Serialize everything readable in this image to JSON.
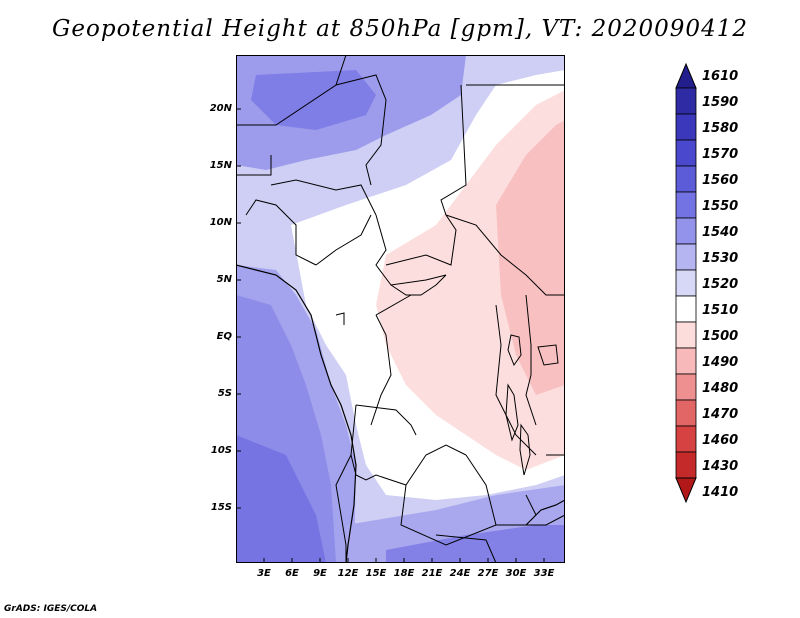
{
  "title": "Geopotential Height at 850hPa [gpm], VT: 2020090412",
  "credit": "GrADS: IGES/COLA",
  "map": {
    "lat_labels": [
      "20N",
      "15N",
      "10N",
      "5N",
      "EQ",
      "5S",
      "10S",
      "15S"
    ],
    "lon_labels": [
      "3E",
      "6E",
      "9E",
      "12E",
      "15E",
      "18E",
      "21E",
      "24E",
      "27E",
      "30E",
      "33E"
    ]
  },
  "colorbar": {
    "levels": [
      "1610",
      "1590",
      "1580",
      "1570",
      "1560",
      "1550",
      "1540",
      "1530",
      "1520",
      "1510",
      "1500",
      "1490",
      "1480",
      "1470",
      "1460",
      "1430",
      "1410"
    ],
    "colors": [
      "#221e8c",
      "#2e2ba4",
      "#3b38bb",
      "#4a48cc",
      "#5c5bd8",
      "#7473e3",
      "#9493eb",
      "#b5b5f2",
      "#d7d7f8",
      "#ffffff",
      "#fddcdc",
      "#f7b9b9",
      "#ee9090",
      "#e26666",
      "#d64242",
      "#c42a2a",
      "#b31818"
    ]
  },
  "legend_colors": {
    "ocean_low": "#8683e9",
    "land_mid": "#c9c9f3",
    "neutral": "#ffffff",
    "high": "#fbd1d1",
    "high_strong": "#f6b5b5",
    "border": "#000000"
  }
}
